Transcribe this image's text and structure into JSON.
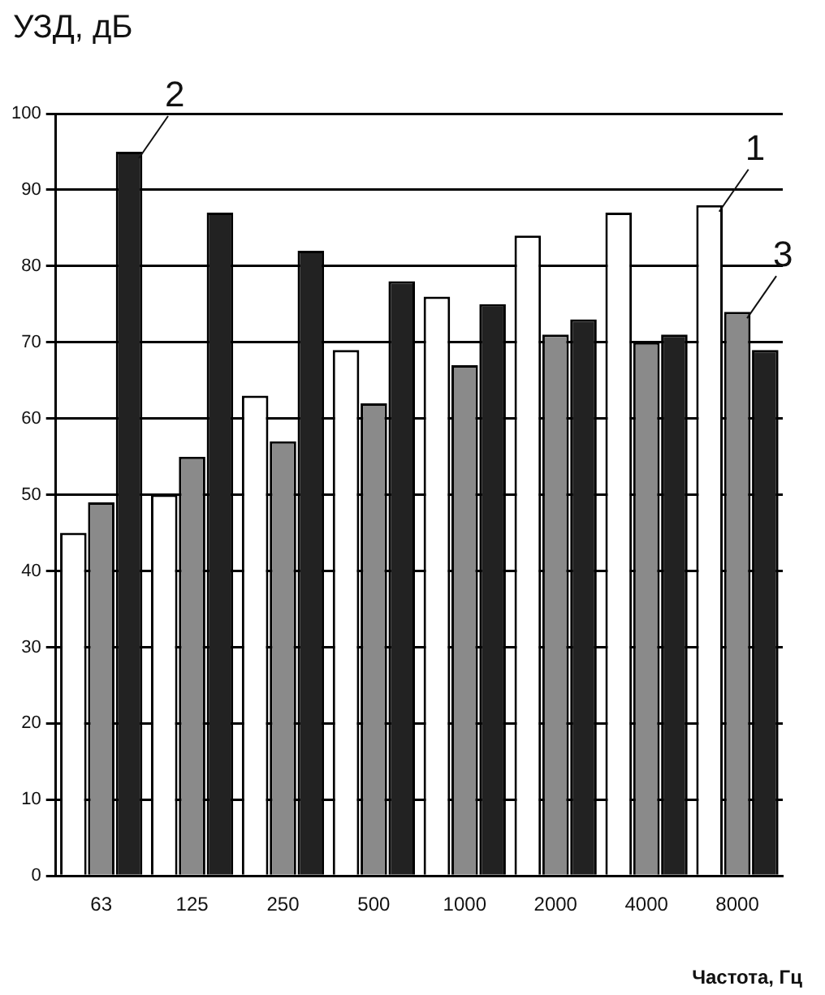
{
  "chart_data": {
    "type": "bar",
    "ylabel": "УЗД, дБ",
    "xlabel": "Частота, Гц",
    "categories": [
      "63",
      "125",
      "250",
      "500",
      "1000",
      "2000",
      "4000",
      "8000"
    ],
    "series": [
      {
        "name": "1",
        "color": "#ffffff",
        "values": [
          45,
          50,
          63,
          69,
          76,
          84,
          87,
          88
        ]
      },
      {
        "name": "3",
        "color": "#8a8a8a",
        "values": [
          49,
          55,
          57,
          62,
          67,
          71,
          70,
          74
        ]
      },
      {
        "name": "2",
        "color": "#222222",
        "values": [
          95,
          87,
          82,
          78,
          75,
          73,
          71,
          69
        ]
      }
    ],
    "ylim": [
      0,
      100
    ],
    "yticks": [
      0,
      10,
      20,
      30,
      40,
      50,
      60,
      70,
      80,
      90,
      100
    ],
    "grid": "y",
    "legend": false
  }
}
